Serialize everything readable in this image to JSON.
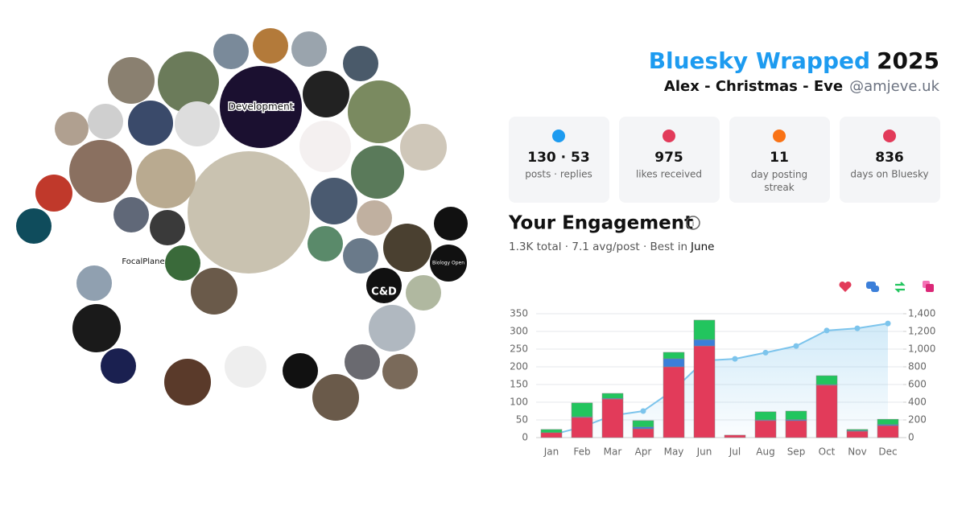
{
  "header": {
    "title": "Bluesky Wrapped",
    "year": "2025",
    "name": "Alex - Christmas - Eve",
    "handle": "@amjeve.uk"
  },
  "collage": {
    "labels": [
      "Development",
      "FocalPlane",
      "C&D",
      "Biology Open"
    ]
  },
  "stats": [
    {
      "value": "130 · 53",
      "label": "posts · replies"
    },
    {
      "value": "975",
      "label": "likes received"
    },
    {
      "value": "11",
      "label": "day posting streak"
    },
    {
      "value": "836",
      "label": "days on Bluesky"
    }
  ],
  "engagement": {
    "title": "Your Engagement",
    "summary": "1.3K total · 7.1 avg/post · Best in",
    "best_month": "June"
  },
  "chart_data": {
    "type": "bar",
    "stacked": true,
    "categories": [
      "Jan",
      "Feb",
      "Mar",
      "Apr",
      "May",
      "Jun",
      "Jul",
      "Aug",
      "Sep",
      "Oct",
      "Nov",
      "Dec"
    ],
    "series": [
      {
        "color": "#e23b5a",
        "values": [
          14,
          57,
          109,
          25,
          200,
          259,
          7,
          48,
          48,
          148,
          18,
          34
        ]
      },
      {
        "color": "#3b7fd9",
        "values": [
          0,
          2,
          2,
          5,
          23,
          18,
          0,
          2,
          3,
          2,
          2,
          3
        ]
      },
      {
        "color": "#22c55e",
        "values": [
          9,
          39,
          14,
          18,
          18,
          55,
          0,
          23,
          24,
          25,
          3,
          15
        ]
      },
      {
        "type": "line",
        "axis": "y2",
        "color": "#7cc4ec",
        "values": [
          30,
          120,
          250,
          300,
          540,
          870,
          890,
          960,
          1035,
          1210,
          1235,
          1290
        ]
      }
    ],
    "ylim": [
      0,
      350
    ],
    "yticks": [
      0,
      50,
      100,
      150,
      200,
      250,
      300,
      350
    ],
    "y2lim": [
      0,
      1400
    ],
    "y2ticks": [
      0,
      200,
      400,
      600,
      800,
      {
        "value": 1000,
        "label": "1,000"
      },
      {
        "value": 1200,
        "label": "1,200"
      },
      {
        "value": 1400,
        "label": "1,400"
      }
    ],
    "grid": true
  }
}
